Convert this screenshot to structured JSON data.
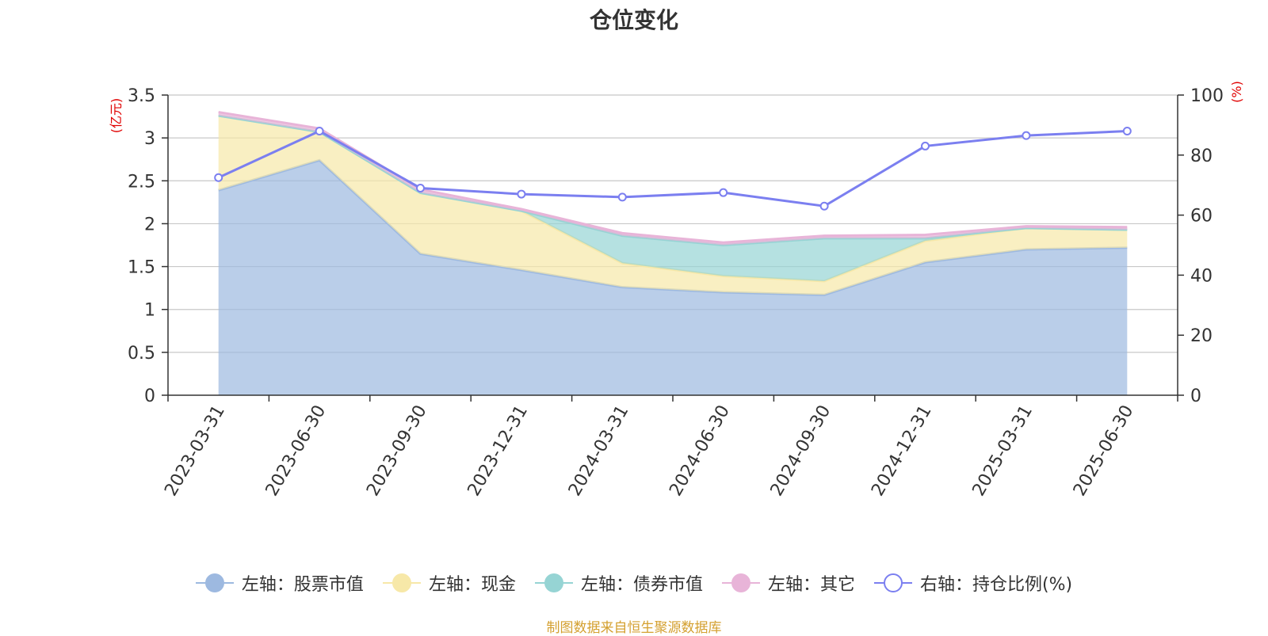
{
  "chart_data": {
    "type": "area",
    "title": "仓位变化",
    "categories": [
      "2023-03-31",
      "2023-06-30",
      "2023-09-30",
      "2023-12-31",
      "2024-03-31",
      "2024-06-30",
      "2024-09-30",
      "2024-12-31",
      "2025-03-31",
      "2025-06-30"
    ],
    "left_axis": {
      "unit": "(亿元)",
      "ylim": [
        0,
        3.5
      ],
      "ticks": [
        "0",
        "0.5",
        "1",
        "1.5",
        "2",
        "2.5",
        "3",
        "3.5"
      ]
    },
    "right_axis": {
      "unit": "(%)",
      "ylim": [
        0,
        100
      ],
      "ticks": [
        "0",
        "20",
        "40",
        "60",
        "80",
        "100"
      ]
    },
    "stacked_series": [
      {
        "name": "左轴：股票市值",
        "color": "#9db9e0",
        "values": [
          2.39,
          2.74,
          1.65,
          1.46,
          1.26,
          1.2,
          1.17,
          1.55,
          1.7,
          1.72
        ]
      },
      {
        "name": "左轴：现金",
        "color": "#f7e8a8",
        "values": [
          0.87,
          0.33,
          0.71,
          0.69,
          0.28,
          0.19,
          0.16,
          0.25,
          0.25,
          0.21
        ]
      },
      {
        "name": "左轴：债券市值",
        "color": "#96d4d4",
        "values": [
          0.0,
          0.0,
          0.0,
          0.0,
          0.32,
          0.36,
          0.5,
          0.03,
          0.0,
          0.0
        ]
      },
      {
        "name": "左轴：其它",
        "color": "#e8b4d8",
        "values": [
          0.04,
          0.04,
          0.04,
          0.02,
          0.03,
          0.03,
          0.03,
          0.04,
          0.02,
          0.03
        ]
      }
    ],
    "line_series": {
      "name": "右轴：持仓比例(%)",
      "color": "#7b7ff0",
      "values": [
        72.5,
        88.0,
        69.0,
        67.0,
        66.0,
        67.5,
        63.0,
        83.0,
        86.5,
        88.0
      ]
    },
    "grid": true,
    "legend_position": "bottom"
  },
  "source_note": "制图数据来自恒生聚源数据库"
}
